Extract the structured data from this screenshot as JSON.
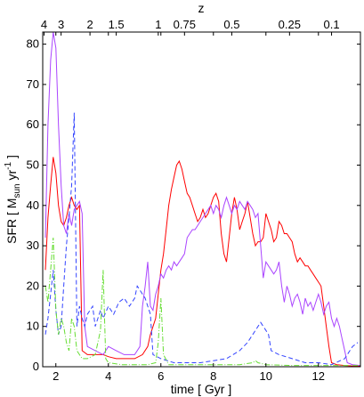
{
  "chart_data": {
    "type": "line",
    "title": "",
    "xlabel": "time [ Gyr ]",
    "ylabel": {
      "prefix": "SFR [ M",
      "sub": "sun",
      "mid": " yr",
      "sup": "-1",
      "suffix": " ]"
    },
    "top_axis_label": "z",
    "xlim": [
      1.5,
      13.6
    ],
    "ylim": [
      0,
      83
    ],
    "x_ticks": [
      2,
      4,
      6,
      8,
      10,
      12
    ],
    "y_ticks": [
      0,
      10,
      20,
      30,
      40,
      50,
      60,
      70,
      80
    ],
    "top_ticks": [
      {
        "label": "4",
        "x": 1.55
      },
      {
        "label": "3",
        "x": 2.2
      },
      {
        "label": "2",
        "x": 3.3
      },
      {
        "label": "1.5",
        "x": 4.3
      },
      {
        "label": "1",
        "x": 5.9
      },
      {
        "label": "0.75",
        "x": 6.9
      },
      {
        "label": "0.5",
        "x": 8.7
      },
      {
        "label": "0.25",
        "x": 10.9
      },
      {
        "label": "0.1",
        "x": 12.5
      }
    ],
    "series": [
      {
        "color": "#ff0000",
        "style": "solid",
        "points": [
          [
            1.6,
            24
          ],
          [
            1.7,
            37
          ],
          [
            1.8,
            45
          ],
          [
            1.9,
            52
          ],
          [
            2.0,
            48
          ],
          [
            2.1,
            40
          ],
          [
            2.2,
            36
          ],
          [
            2.3,
            35
          ],
          [
            2.4,
            37
          ],
          [
            2.5,
            40
          ],
          [
            2.6,
            42
          ],
          [
            2.7,
            40
          ],
          [
            2.8,
            39
          ],
          [
            2.9,
            40
          ],
          [
            3.0,
            4
          ],
          [
            3.2,
            3
          ],
          [
            3.5,
            3
          ],
          [
            3.8,
            3
          ],
          [
            4.0,
            2.5
          ],
          [
            4.3,
            2
          ],
          [
            4.6,
            2
          ],
          [
            5.0,
            2
          ],
          [
            5.3,
            3
          ],
          [
            5.5,
            5
          ],
          [
            5.6,
            8
          ],
          [
            5.8,
            12
          ],
          [
            5.9,
            18
          ],
          [
            6.0,
            24
          ],
          [
            6.1,
            28
          ],
          [
            6.2,
            34
          ],
          [
            6.3,
            40
          ],
          [
            6.4,
            44
          ],
          [
            6.5,
            47
          ],
          [
            6.6,
            50
          ],
          [
            6.7,
            51
          ],
          [
            6.8,
            49
          ],
          [
            6.9,
            46
          ],
          [
            7.0,
            43
          ],
          [
            7.1,
            42
          ],
          [
            7.2,
            40
          ],
          [
            7.3,
            38
          ],
          [
            7.4,
            36
          ],
          [
            7.5,
            37
          ],
          [
            7.6,
            39
          ],
          [
            7.7,
            37
          ],
          [
            7.8,
            38
          ],
          [
            7.9,
            40
          ],
          [
            8.0,
            42
          ],
          [
            8.1,
            43
          ],
          [
            8.2,
            41
          ],
          [
            8.3,
            33
          ],
          [
            8.4,
            28
          ],
          [
            8.5,
            26
          ],
          [
            8.6,
            32
          ],
          [
            8.7,
            38
          ],
          [
            8.8,
            42
          ],
          [
            8.9,
            39
          ],
          [
            9.0,
            34
          ],
          [
            9.1,
            36
          ],
          [
            9.2,
            38
          ],
          [
            9.3,
            41
          ],
          [
            9.4,
            37
          ],
          [
            9.5,
            33
          ],
          [
            9.6,
            30
          ],
          [
            9.7,
            31
          ],
          [
            9.8,
            31
          ],
          [
            9.9,
            32
          ],
          [
            10.0,
            38
          ],
          [
            10.1,
            36
          ],
          [
            10.2,
            34
          ],
          [
            10.3,
            31
          ],
          [
            10.4,
            32
          ],
          [
            10.5,
            36
          ],
          [
            10.6,
            35
          ],
          [
            10.7,
            33
          ],
          [
            10.8,
            33
          ],
          [
            10.9,
            32
          ],
          [
            11.0,
            31
          ],
          [
            11.1,
            28
          ],
          [
            11.2,
            26
          ],
          [
            11.3,
            27
          ],
          [
            11.4,
            26
          ],
          [
            11.5,
            25
          ],
          [
            11.6,
            25
          ],
          [
            11.7,
            24
          ],
          [
            11.8,
            23
          ],
          [
            11.9,
            22
          ],
          [
            12.0,
            21
          ],
          [
            12.1,
            20
          ],
          [
            12.2,
            15
          ],
          [
            12.3,
            10
          ],
          [
            12.4,
            5
          ],
          [
            12.5,
            1
          ],
          [
            12.7,
            0.5
          ],
          [
            13.0,
            0.3
          ],
          [
            13.3,
            0.2
          ],
          [
            13.6,
            0.2
          ]
        ]
      },
      {
        "color": "#aa44ff",
        "style": "solid",
        "points": [
          [
            1.6,
            32
          ],
          [
            1.7,
            60
          ],
          [
            1.8,
            76
          ],
          [
            1.9,
            83
          ],
          [
            2.0,
            79
          ],
          [
            2.1,
            60
          ],
          [
            2.2,
            45
          ],
          [
            2.3,
            35
          ],
          [
            2.4,
            33
          ],
          [
            2.5,
            38
          ],
          [
            2.6,
            35
          ],
          [
            2.7,
            39
          ],
          [
            2.8,
            40
          ],
          [
            2.9,
            41
          ],
          [
            3.0,
            38
          ],
          [
            3.1,
            10
          ],
          [
            3.2,
            5
          ],
          [
            3.5,
            4
          ],
          [
            3.8,
            3
          ],
          [
            4.0,
            5
          ],
          [
            4.3,
            4
          ],
          [
            4.6,
            3
          ],
          [
            5.0,
            3
          ],
          [
            5.2,
            5
          ],
          [
            5.3,
            15
          ],
          [
            5.4,
            20
          ],
          [
            5.5,
            26
          ],
          [
            5.6,
            15
          ],
          [
            5.7,
            14
          ],
          [
            5.8,
            18
          ],
          [
            5.9,
            20
          ],
          [
            6.0,
            23
          ],
          [
            6.1,
            22
          ],
          [
            6.2,
            24
          ],
          [
            6.3,
            25
          ],
          [
            6.4,
            24
          ],
          [
            6.5,
            26
          ],
          [
            6.6,
            25
          ],
          [
            6.7,
            26
          ],
          [
            6.8,
            27
          ],
          [
            6.9,
            28
          ],
          [
            7.0,
            32
          ],
          [
            7.1,
            33
          ],
          [
            7.2,
            34
          ],
          [
            7.3,
            34
          ],
          [
            7.4,
            35
          ],
          [
            7.5,
            36
          ],
          [
            7.6,
            37
          ],
          [
            7.7,
            38
          ],
          [
            7.8,
            39
          ],
          [
            7.9,
            40
          ],
          [
            8.0,
            38
          ],
          [
            8.1,
            40
          ],
          [
            8.2,
            39
          ],
          [
            8.3,
            37
          ],
          [
            8.4,
            40
          ],
          [
            8.5,
            42
          ],
          [
            8.6,
            40
          ],
          [
            8.7,
            38
          ],
          [
            8.8,
            40
          ],
          [
            8.9,
            39
          ],
          [
            9.0,
            41
          ],
          [
            9.1,
            40
          ],
          [
            9.2,
            39
          ],
          [
            9.3,
            41
          ],
          [
            9.4,
            40
          ],
          [
            9.5,
            39
          ],
          [
            9.6,
            37
          ],
          [
            9.7,
            38
          ],
          [
            9.8,
            30
          ],
          [
            9.9,
            22
          ],
          [
            10.0,
            26
          ],
          [
            10.1,
            25
          ],
          [
            10.2,
            24
          ],
          [
            10.3,
            23
          ],
          [
            10.4,
            24
          ],
          [
            10.5,
            26
          ],
          [
            10.6,
            20
          ],
          [
            10.7,
            16
          ],
          [
            10.8,
            20
          ],
          [
            10.9,
            18
          ],
          [
            11.0,
            15
          ],
          [
            11.1,
            17
          ],
          [
            11.2,
            18
          ],
          [
            11.3,
            16
          ],
          [
            11.4,
            13
          ],
          [
            11.5,
            17
          ],
          [
            11.6,
            15
          ],
          [
            11.7,
            16
          ],
          [
            11.8,
            14
          ],
          [
            11.9,
            16
          ],
          [
            12.0,
            18
          ],
          [
            12.1,
            16
          ],
          [
            12.2,
            13
          ],
          [
            12.3,
            15
          ],
          [
            12.4,
            16
          ],
          [
            12.5,
            12
          ],
          [
            12.6,
            10
          ],
          [
            12.7,
            12
          ],
          [
            12.8,
            10
          ],
          [
            12.9,
            7
          ],
          [
            13.0,
            4
          ],
          [
            13.1,
            1
          ],
          [
            13.3,
            0.5
          ],
          [
            13.6,
            0.3
          ]
        ]
      },
      {
        "color": "#3344ff",
        "style": "dashed",
        "points": [
          [
            1.6,
            8
          ],
          [
            1.7,
            12
          ],
          [
            1.8,
            18
          ],
          [
            1.9,
            24
          ],
          [
            2.0,
            14
          ],
          [
            2.1,
            8
          ],
          [
            2.2,
            10
          ],
          [
            2.3,
            20
          ],
          [
            2.4,
            30
          ],
          [
            2.5,
            37
          ],
          [
            2.6,
            45
          ],
          [
            2.7,
            63
          ],
          [
            2.8,
            10
          ],
          [
            2.9,
            15
          ],
          [
            3.0,
            12
          ],
          [
            3.1,
            10
          ],
          [
            3.2,
            13
          ],
          [
            3.3,
            14
          ],
          [
            3.4,
            15
          ],
          [
            3.5,
            10
          ],
          [
            3.6,
            12
          ],
          [
            3.7,
            14
          ],
          [
            3.8,
            12
          ],
          [
            4.0,
            15
          ],
          [
            4.2,
            13
          ],
          [
            4.4,
            16
          ],
          [
            4.6,
            17
          ],
          [
            4.8,
            15
          ],
          [
            5.0,
            17
          ],
          [
            5.1,
            20
          ],
          [
            5.2,
            19
          ],
          [
            5.3,
            18
          ],
          [
            5.4,
            17
          ],
          [
            5.5,
            15
          ],
          [
            5.6,
            13
          ],
          [
            5.7,
            3
          ],
          [
            6.0,
            2
          ],
          [
            6.5,
            1
          ],
          [
            7.0,
            1
          ],
          [
            7.5,
            1
          ],
          [
            8.0,
            1.5
          ],
          [
            8.5,
            2
          ],
          [
            9.0,
            4
          ],
          [
            9.3,
            6
          ],
          [
            9.5,
            8
          ],
          [
            9.7,
            10
          ],
          [
            9.8,
            11
          ],
          [
            9.9,
            10
          ],
          [
            10.0,
            9
          ],
          [
            10.1,
            8
          ],
          [
            10.2,
            4
          ],
          [
            10.5,
            3
          ],
          [
            11.0,
            2
          ],
          [
            11.5,
            1
          ],
          [
            12.0,
            1
          ],
          [
            12.5,
            0.5
          ],
          [
            13.0,
            2
          ],
          [
            13.3,
            5
          ],
          [
            13.5,
            6
          ]
        ]
      },
      {
        "color": "#66dd33",
        "style": "dashdot",
        "points": [
          [
            1.6,
            20
          ],
          [
            1.7,
            16
          ],
          [
            1.8,
            24
          ],
          [
            1.9,
            32
          ],
          [
            2.0,
            14
          ],
          [
            2.1,
            8
          ],
          [
            2.2,
            12
          ],
          [
            2.3,
            10
          ],
          [
            2.4,
            6
          ],
          [
            2.5,
            4
          ],
          [
            2.6,
            12
          ],
          [
            2.7,
            10
          ],
          [
            2.8,
            4
          ],
          [
            2.9,
            3
          ],
          [
            3.0,
            2
          ],
          [
            3.2,
            2
          ],
          [
            3.5,
            3
          ],
          [
            3.7,
            9
          ],
          [
            3.8,
            24
          ],
          [
            3.9,
            2
          ],
          [
            4.0,
            1
          ],
          [
            4.5,
            0.5
          ],
          [
            5.0,
            0.5
          ],
          [
            5.5,
            0.5
          ],
          [
            5.8,
            1
          ],
          [
            5.9,
            6
          ],
          [
            6.0,
            17
          ],
          [
            6.1,
            3
          ],
          [
            6.3,
            0.5
          ],
          [
            7.0,
            0.5
          ],
          [
            8.0,
            0.5
          ],
          [
            9.0,
            0.5
          ],
          [
            9.5,
            1
          ],
          [
            9.6,
            1.5
          ],
          [
            9.7,
            1
          ],
          [
            10.0,
            0.5
          ],
          [
            11.0,
            0.3
          ],
          [
            12.0,
            0.3
          ],
          [
            13.0,
            0.3
          ],
          [
            13.6,
            0.3
          ]
        ]
      }
    ]
  }
}
